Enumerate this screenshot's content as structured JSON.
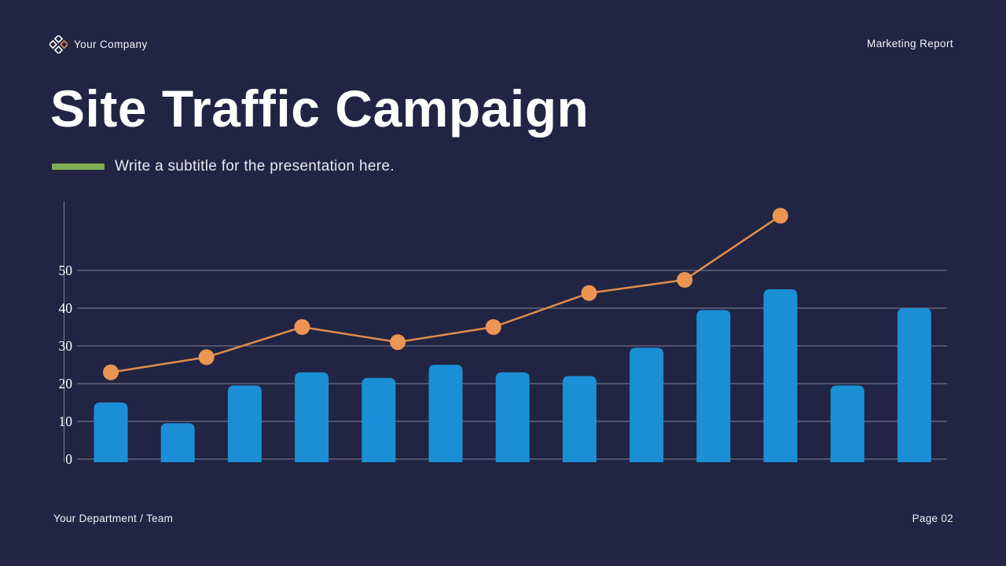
{
  "slide": {
    "background_color": "#212442",
    "accent_green": "#80ae52"
  },
  "header": {
    "company_name": "Your Company",
    "report_label": "Marketing Report",
    "logo_icon": "diamond-cluster-icon",
    "logo_white": "#ffffff",
    "logo_orange": "#d98c50"
  },
  "title": "Site Traffic Campaign",
  "subtitle": "Write a subtitle for the presentation here.",
  "footer": {
    "department": "Your Department / Team",
    "page": "Page 02"
  },
  "colors": {
    "bar_blue": "#1b8fd6",
    "dot_orange": "#ec9552",
    "line_orange": "#e18c4b",
    "grid_line": "rgba(222,226,242,0.5)",
    "axis_label": "#ffffff"
  },
  "chart_data": {
    "type": "combo",
    "subtypes": [
      "bar",
      "line"
    ],
    "title": "",
    "xlabel": "",
    "ylabel": "",
    "categories": [],
    "x_tick_labels_visible": false,
    "yticks": [
      0,
      10,
      20,
      30,
      40,
      50
    ],
    "ylim": [
      0,
      68
    ],
    "grid": true,
    "legend": "none",
    "series": [
      {
        "name": "site-traffic-bars",
        "type": "bar",
        "color": "#1b8fd6",
        "values": [
          15,
          9.5,
          19.5,
          23,
          21.5,
          25,
          23,
          22,
          29.5,
          39.5,
          45,
          19.5,
          40
        ]
      },
      {
        "name": "site-traffic-line",
        "type": "line",
        "color": "#ec9552",
        "line_color": "#e18c4b",
        "values": [
          23,
          27,
          35,
          31,
          35,
          44,
          47.5,
          64.5
        ]
      }
    ]
  }
}
